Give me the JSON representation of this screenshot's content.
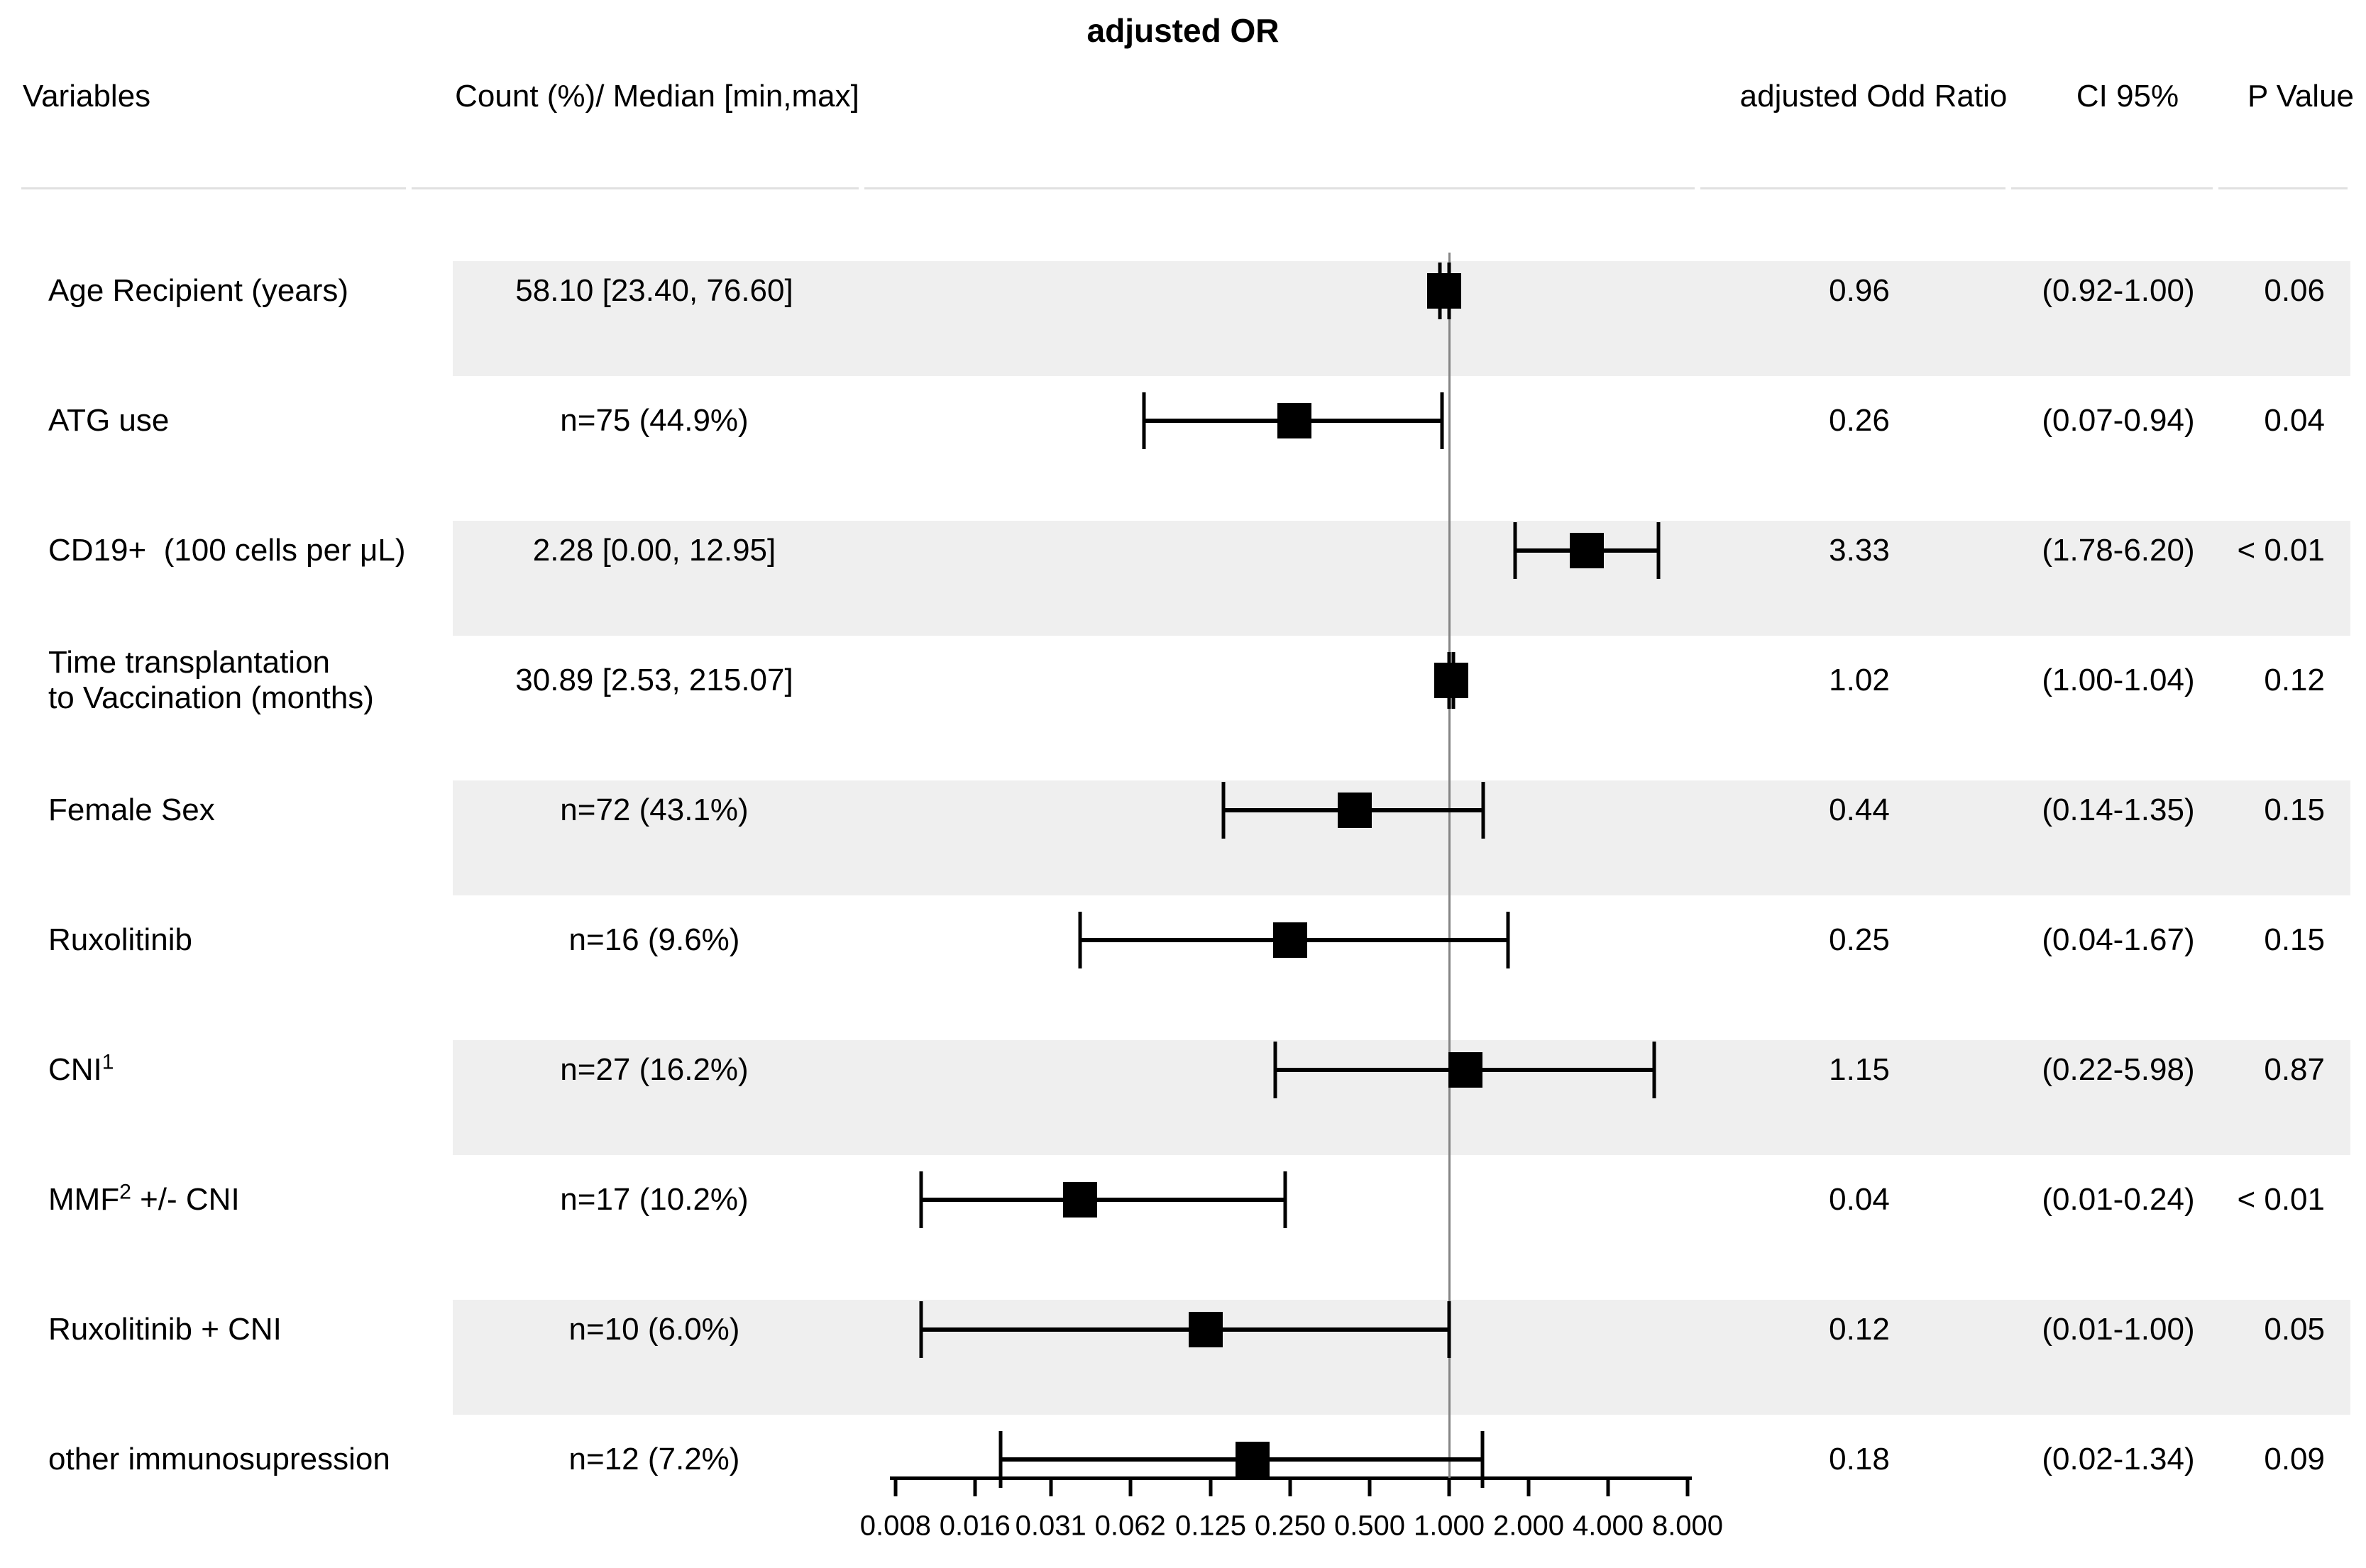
{
  "title": "adjusted OR",
  "header": {
    "variables": "Variables",
    "count": "Count (%)/ Median [min,max]",
    "odds_ratio": "adjusted Odd Ratio",
    "ci": "CI 95%",
    "p": "P Value"
  },
  "colors": {
    "band": "#efefef",
    "reference_line": "#858585",
    "separator": "#e0e0e0",
    "marker": "#000000"
  },
  "chart_data": {
    "type": "forest",
    "x_scale": "log2",
    "x_ticks": [
      0.008,
      0.016,
      0.031,
      0.062,
      0.125,
      0.25,
      0.5,
      1.0,
      2.0,
      4.0,
      8.0
    ],
    "x_tick_labels": [
      "0.008",
      "0.016",
      "0.031",
      "0.062",
      "0.125",
      "0.250",
      "0.500",
      "1.000",
      "2.000",
      "4.000",
      "8.000"
    ],
    "x_range": [
      0.008,
      8.0
    ],
    "reference_line": 1.0,
    "grid": false,
    "rows": [
      {
        "variable": "Age Recipient (years)",
        "count": "58.10 [23.40, 76.60]",
        "or": 0.96,
        "ci_low": 0.92,
        "ci_high": 1.0,
        "or_label": "0.96",
        "ci_label": "(0.92-1.00)",
        "p_label": "0.06",
        "shaded": true
      },
      {
        "variable": "ATG use",
        "count": "n=75 (44.9%)",
        "or": 0.26,
        "ci_low": 0.07,
        "ci_high": 0.94,
        "or_label": "0.26",
        "ci_label": "(0.07-0.94)",
        "p_label": "0.04",
        "shaded": false
      },
      {
        "variable": "CD19+  (100 cells per μL)",
        "count": "2.28 [0.00, 12.95]",
        "or": 3.33,
        "ci_low": 1.78,
        "ci_high": 6.2,
        "or_label": "3.33",
        "ci_label": "(1.78-6.20)",
        "p_label": "< 0.01",
        "shaded": true
      },
      {
        "variable_lines": [
          "Time transplantation",
          "to Vaccination (months)"
        ],
        "count": "30.89 [2.53, 215.07]",
        "or": 1.02,
        "ci_low": 1.0,
        "ci_high": 1.04,
        "or_label": "1.02",
        "ci_label": "(1.00-1.04)",
        "p_label": "0.12",
        "shaded": false
      },
      {
        "variable": "Female Sex",
        "count": "n=72 (43.1%)",
        "or": 0.44,
        "ci_low": 0.14,
        "ci_high": 1.35,
        "or_label": "0.44",
        "ci_label": "(0.14-1.35)",
        "p_label": "0.15",
        "shaded": true
      },
      {
        "variable": "Ruxolitinib",
        "count": "n=16 (9.6%)",
        "or": 0.25,
        "ci_low": 0.04,
        "ci_high": 1.67,
        "or_label": "0.25",
        "ci_label": "(0.04-1.67)",
        "p_label": "0.15",
        "shaded": false
      },
      {
        "variable_pre": "CNI",
        "variable_sup": "1",
        "variable_post": "",
        "count": "n=27 (16.2%)",
        "or": 1.15,
        "ci_low": 0.22,
        "ci_high": 5.98,
        "or_label": "1.15",
        "ci_label": "(0.22-5.98)",
        "p_label": "0.87",
        "shaded": true
      },
      {
        "variable_pre": "MMF",
        "variable_sup": "2",
        "variable_post": " +/- CNI",
        "count": "n=17 (10.2%)",
        "or": 0.04,
        "ci_low": 0.01,
        "ci_high": 0.24,
        "or_label": "0.04",
        "ci_label": "(0.01-0.24)",
        "p_label": "< 0.01",
        "shaded": false
      },
      {
        "variable": "Ruxolitinib + CNI",
        "count": "n=10 (6.0%)",
        "or": 0.12,
        "ci_low": 0.01,
        "ci_high": 1.0,
        "or_label": "0.12",
        "ci_label": "(0.01-1.00)",
        "p_label": "0.05",
        "shaded": true
      },
      {
        "variable": "other immunosupression",
        "count": "n=12 (7.2%)",
        "or": 0.18,
        "ci_low": 0.02,
        "ci_high": 1.34,
        "or_label": "0.18",
        "ci_label": "(0.02-1.34)",
        "p_label": "0.09",
        "shaded": false
      }
    ]
  }
}
